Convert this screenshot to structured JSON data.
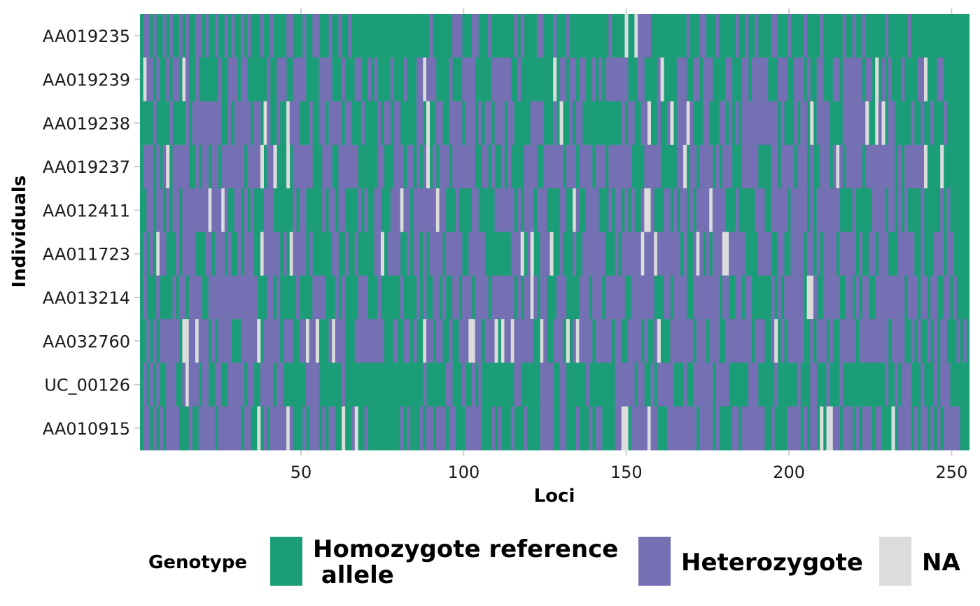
{
  "chart_data": {
    "type": "heatmap",
    "xlabel": "Loci",
    "ylabel": "Individuals",
    "xlim": [
      1,
      255
    ],
    "x_ticks": [
      50,
      100,
      150,
      200,
      250
    ],
    "individuals": [
      "AA019235",
      "AA019239",
      "AA019238",
      "AA019237",
      "AA012411",
      "AA011723",
      "AA013214",
      "AA032760",
      "UC_00126",
      "AA010915"
    ],
    "n_loci": 255,
    "categories": [
      "Homozygote reference\n allele",
      "Heterozygote",
      "NA"
    ],
    "colors": {
      "Homozygote reference\n allele": "#1b9e77",
      "Heterozygote": "#7570b3",
      "NA": "#dcdcdc"
    },
    "grid": true,
    "legend": {
      "title": "Genotype",
      "position": "bottom"
    },
    "values": {
      "encoding": "per individual, 255 characters: H = homozygote reference allele, h = heterozygote, N = NA",
      "AA019235": "HhhHhHHhHhHHhHhHHhhHhHHhHHhHhHHhHhHHHhHHhHHHHhhHHHhHHhhHHHhHHhHHhHHHHHHHHHHHHHHHHHHHHHHHHhHHHHHHhhhHHHhhHHHhHHHHHHHhHhHHHHhhHHHhHHHhHHHHHHHHHHHHhHHHHNHHNhhhhHHHHHHHHHHHhHHHhhHHHhHHHHHhHHhHHhHHHHhhHHHhHHHHhHHHHhHHHHHHhHHhHHhHHHHHHhHHHHHHhHHHHHH",
      "AA019239": "HNhhHhHHhHhhHNhHHhHHHHHHhHHhhhHhhHHHHHHhHHhhhHHhhhhHHHHhhhhHHHhHHHhhHHhHhHHHHhHHHhHHHhhNhhhHHHHhHHHhhhhHHHHHhhhhhhHHhHHHHHHHHHHNHhhHhhHhhHHhHhHhhhhhhhHHHhhHHHHhNHHHHhhhHHhhHhhhHHHHhhHHHhhHhhhhhHHHhhhHHhhhHhHHhhHHHhhHhhhhhhHhhHNHhHhHHHhHHHHhhNHHHhhHH",
      "AA019238": "HHHHhHHHHhHHHHhHhhhhhhhhhHHhHhhhhhHhhHNhHHhHHNhhhHHHhHHhhHhhhhHhhHHHhHHHHhHhhHhhHHHHHhhHNHHhhHHhhhhHhhhHhHhhHhhhHhhHHHHHhhhhHHHhHNHHhHhhHHHHHHHHHHHHhHhhHHhhNHHhHHhNHhhhNhHHHhhHHHhhHhHhHhhhhhhhhhhhHhHHHhHhhHNHhhhhHHHHhhhhhhhNHHNhNHhhHHHHHhHHhHHhHHHhHH",
      "AA019237": "HhhhHhHhNHhhhhhHHhHhhHhhHhhhhhhhHhhhhNHhhNHHHNHhhhhhhHHHhhhHHhhhhhhHHHHHHhhHHHhhhHhhHhHhNHhHhhhHhhhhhhhHHhhHhHHhHhHHHHhhhhHHhhhhhhHhhhHhhhhHhhhHhhhhhhhHHHHhhhhhHHHHHhhNHhhHhhhhHhHhhhHHHhhhhhHHHHhhHhhhhHhhhHhHHhhhHhNhHhhhhhHhhhhhhhhhHhHhhhhhhNHHHHNHHH",
      "AA012411": "HHhhHhhHhHhhHhhhhhhhhNhhhNhHHhhHhHhHHHhhhHHHHHHhHhhHHHHHhHhhHhhHHHHhHhHHhhHHHhhhNhhHhhhhhhhNhhHHHhHHHHhhHHHHHhhhhhhHhHhhhHhhhHHHHhhHHNhHHhhhhHHHhHhhHhHhHHhNNhHHHhhHhHhhHhHhhhhNhhhhHHHhHHHHHhhhHHhhhhhHhhhhhHhHhhhhhhhHHHHhHHHHHhhhhHhhHhHhHHHHhHHHHHhHh",
      "AA011723": "HhHhHNhhHHHhHhhhhHHHhhHhhhHhHHhHhhhHHNhhhhhHhHNhhhhHhHHHHHHhhHHhHHhHHHHHhhNHhhhhHHhHhhHhHhhhhHhhhhhHHhhhhhHHHHHHHHhhhNHhNHHhhhNHHhHHHhHHhhhhhhhHHHhHhhhhhhNhhhNhhhhhhhHhHHhNhHhHhhhNNhhhhhHHHHhhhhHHhhHHhhhhHhhHhHhhhhHhhhhhHhHHhhHhhhHHHhhhhhHHhHHHhhhHhhH",
      "AA013214": "HhHHHhHHHHhHhhHhhhhHHhhhhhhhhhhhhhhhHHHhhHhHHHHHhHHHHhhhhHHHhHhHHHHhhhHHHhHHHHHHhHHHHhHhHHhhHhHHhhHhhhHhhhhHhhhhhhhHhHhhNhHhhHHHhhhHHHHhhhHhhhHhhhhhhHHhhhhhhhHHHhhHhhhhHHhhhhhhhhHhhHHhhHhhHHHHHHhHhHhhhhhhHNNhHHhhhhhHHhhHhHhhHHhhhhhhhhhHhhhHhhHhhHHhhHh",
      "AA032760": "HHhHhHhhhhhhHNNhhNhhhHhHhhhhHHHhhhhhNHhhhhhHhhhHHhhNhhNHHHhNhhhHHHhhhhhhhhhHHHhHHhhHhHHNhhHhhHHhHHhhhNNhhHhhhNHNhhNhhhhhhHHNhHHhhhHNHhNhhhhHhhhhhHhhHHhhhhHhHHhNHHHhhhhhhhHhhhHhhhHHhhhhhhhhHhhhHHhNHhHhhhhhHHhHhhhHhHHhhhhhHhhhhhhhhhHhhhhHHhHhHHhHhHhhHHHhHh",
      "UC_00126": "HhHhHhHHhhhHHhNhhhHhhHHhhHHhhhhhHhhHHhhhhHhhHHHHHHHhhhhHHHHHHHhHHHHHHHHHHHHHHHHHHHHHHHHhHHHHHHhhHHHhHHhHhHHHHHHHHHHhhHHHHHHhhhhHHhhHHHHHHhHHHHHHHHhhhhhhHhhHHhHhhhhhHHHhHHhhhhhhHhhhhHHHHHHhhhHHHHHhHHHHHHhHHHhhHHHhHHHhHHHHHHHHHHHHHhHHhHhhhHHHhHHHhHhhhH",
      "AA010915": "HhhHhHhHhhhhHHHhHHhhhhhHhhhhhhhHhhHHNHhHhhhhhNhHHHhHhhhHhHhhHHNHHhNHHhHHHHHHHHHHhHhHHHhHhhHhhhHhhHHHhhhhhHHHhHhHHHhHHHhHHHHhhhhHHhhHHHhHHHhHhhHHHHhhNNHhhhhhNhhHHHhhhhhhhhhHhhhhHhHHHHhhHhhhhhhhHHhHHHHhhhhHhHhhHNHNNhhHhhhHhHhhhHhhHHHNHhhhhHhHhhHhHhHhhhhhH"
    }
  }
}
